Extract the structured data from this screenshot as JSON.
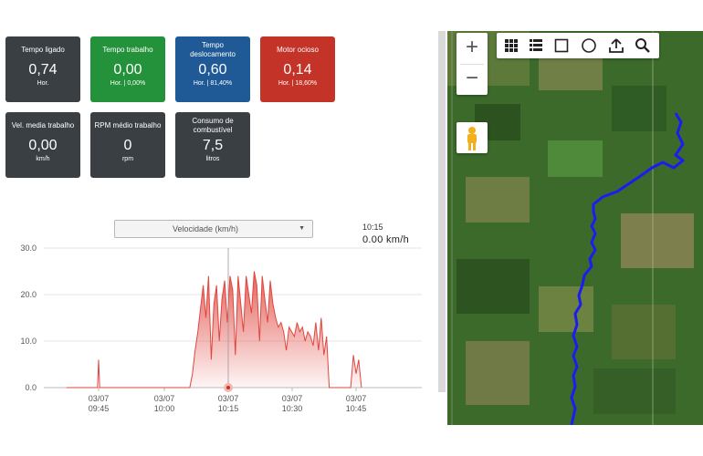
{
  "cards": [
    {
      "title": "Tempo ligado",
      "value": "0,74",
      "sub": "Hor."
    },
    {
      "title": "Tempo trabalho",
      "value": "0,00",
      "sub": "Hor. | 0,00%"
    },
    {
      "title": "Tempo deslocamento",
      "value": "0,60",
      "sub": "Hor. | 81,40%"
    },
    {
      "title": "Motor ocioso",
      "value": "0,14",
      "sub": "Hor. | 18,60%"
    },
    {
      "title": "Vel. media trabalho",
      "value": "0,00",
      "sub": "km/h"
    },
    {
      "title": "RPM médio trabalho",
      "value": "0",
      "sub": "rpm"
    },
    {
      "title": "Consumo de combustível",
      "value": "7,5",
      "sub": "litros"
    }
  ],
  "colors": {
    "dark": "#3a3f44",
    "green": "#24923a",
    "blue": "#1f5a96",
    "red": "#c43328",
    "series": "#e0463f",
    "track": "#1c1cf0"
  },
  "chart_selector": {
    "label": "Velocidade (km/h)"
  },
  "readout": {
    "time": "10:15",
    "value": "0.00 km/h"
  },
  "map_controls": {
    "zoom_in": "+",
    "zoom_out": "−",
    "tools": [
      "grid-icon",
      "list-icon",
      "rectangle-icon",
      "circle-icon",
      "upload-icon",
      "search-icon"
    ],
    "pegman": "street-view-pegman-icon"
  },
  "chart_data": {
    "type": "area",
    "ylim": [
      0,
      30
    ],
    "y_ticks": [
      "30.0",
      "20.0",
      "10.0",
      "0.0"
    ],
    "x_ticks": [
      {
        "date": "03/07",
        "time": "09:45"
      },
      {
        "date": "03/07",
        "time": "10:00"
      },
      {
        "date": "03/07",
        "time": "10:15"
      },
      {
        "date": "03/07",
        "time": "10:30"
      },
      {
        "date": "03/07",
        "time": "10:45"
      }
    ],
    "crosshair_time": "10:15",
    "series": [
      {
        "values": [
          [
            0.0,
            0
          ],
          [
            0.58,
            0
          ],
          [
            0.6,
            6
          ],
          [
            0.62,
            0
          ],
          [
            2.0,
            0
          ],
          [
            2.3,
            0
          ],
          [
            2.35,
            3
          ],
          [
            2.4,
            8
          ],
          [
            2.45,
            12
          ],
          [
            2.5,
            17
          ],
          [
            2.55,
            22
          ],
          [
            2.6,
            15
          ],
          [
            2.65,
            24
          ],
          [
            2.7,
            6
          ],
          [
            2.75,
            18
          ],
          [
            2.8,
            22
          ],
          [
            2.85,
            10
          ],
          [
            2.9,
            19
          ],
          [
            2.95,
            23
          ],
          [
            3.0,
            14
          ],
          [
            3.05,
            24
          ],
          [
            3.1,
            21
          ],
          [
            3.15,
            7
          ],
          [
            3.2,
            24
          ],
          [
            3.25,
            18
          ],
          [
            3.3,
            12
          ],
          [
            3.35,
            24
          ],
          [
            3.4,
            20
          ],
          [
            3.45,
            16
          ],
          [
            3.5,
            25
          ],
          [
            3.55,
            22
          ],
          [
            3.6,
            10
          ],
          [
            3.65,
            24
          ],
          [
            3.7,
            19
          ],
          [
            3.75,
            14
          ],
          [
            3.8,
            23
          ],
          [
            3.85,
            18
          ],
          [
            3.9,
            15
          ],
          [
            3.95,
            13
          ],
          [
            4.0,
            14
          ],
          [
            4.05,
            12
          ],
          [
            4.1,
            8
          ],
          [
            4.15,
            13
          ],
          [
            4.2,
            12
          ],
          [
            4.25,
            11
          ],
          [
            4.3,
            14
          ],
          [
            4.35,
            12
          ],
          [
            4.4,
            13
          ],
          [
            4.45,
            10
          ],
          [
            4.5,
            12
          ],
          [
            4.55,
            11
          ],
          [
            4.6,
            9
          ],
          [
            4.65,
            14
          ],
          [
            4.7,
            8
          ],
          [
            4.75,
            15
          ],
          [
            4.8,
            7
          ],
          [
            4.85,
            11
          ],
          [
            4.9,
            0
          ],
          [
            5.3,
            0
          ],
          [
            5.35,
            7
          ],
          [
            5.4,
            3
          ],
          [
            5.45,
            6
          ],
          [
            5.5,
            0
          ]
        ]
      }
    ]
  }
}
